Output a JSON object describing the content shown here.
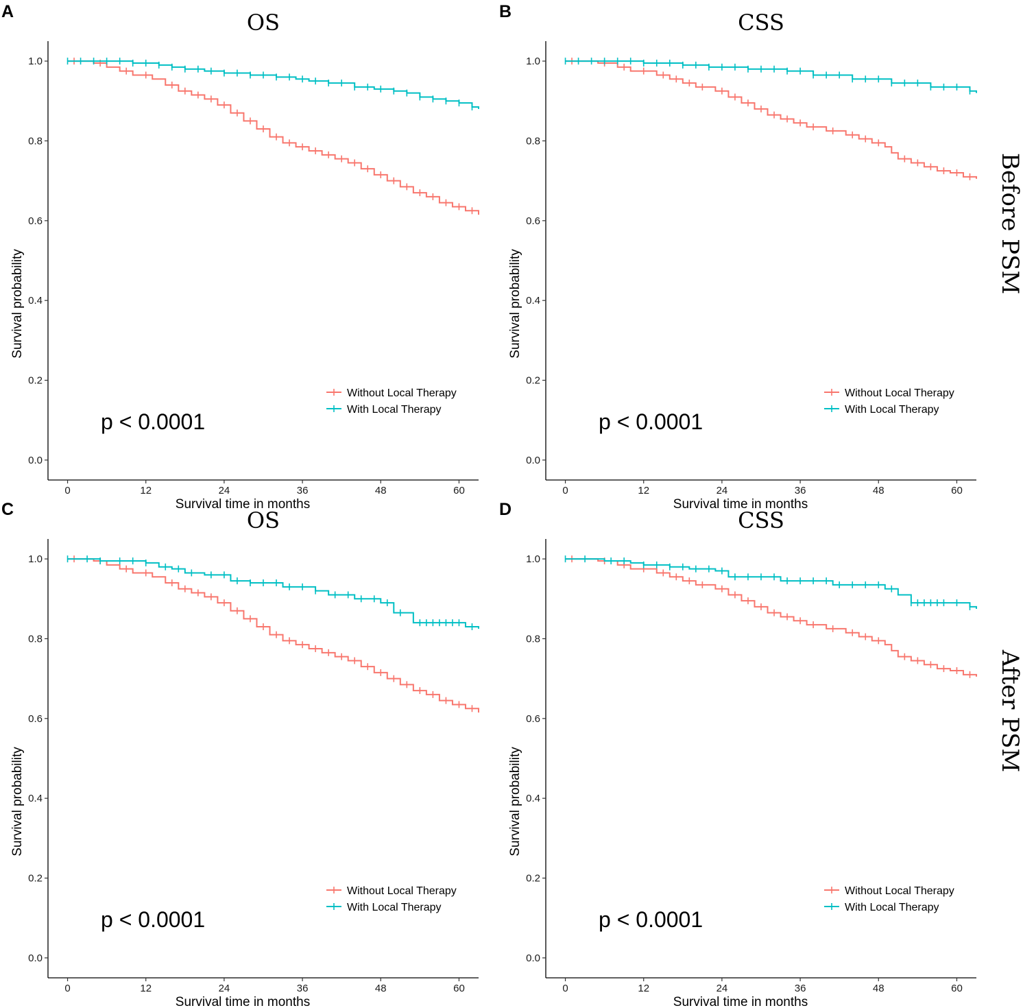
{
  "figure": {
    "row_labels": [
      "Before PSM",
      "After PSM"
    ]
  },
  "chart_data": [
    {
      "panel": "A",
      "type": "line",
      "title": "OS",
      "xlabel": "Survival time in months",
      "ylabel": "Survival probability",
      "xlim": [
        -3,
        63
      ],
      "ylim": [
        -0.05,
        1.05
      ],
      "x_ticks": [
        0,
        12,
        24,
        36,
        48,
        60
      ],
      "y_ticks": [
        0.0,
        0.2,
        0.4,
        0.6,
        0.8,
        1.0
      ],
      "y_tick_labels": [
        "0.0",
        "0.2",
        "0.4",
        "0.6",
        "0.8",
        "1.0"
      ],
      "annotation": "p < 0.0001",
      "legend_position": "bottom-right",
      "series": [
        {
          "name": "Without Local Therapy",
          "color": "#F8766D",
          "x": [
            0,
            4,
            6,
            8,
            10,
            13,
            15,
            17,
            19,
            21,
            23,
            25,
            27,
            29,
            31,
            33,
            35,
            37,
            39,
            41,
            43,
            45,
            47,
            49,
            51,
            53,
            55,
            57,
            59,
            61,
            63
          ],
          "y": [
            1.0,
            0.995,
            0.985,
            0.975,
            0.965,
            0.955,
            0.94,
            0.925,
            0.915,
            0.905,
            0.89,
            0.87,
            0.85,
            0.83,
            0.81,
            0.795,
            0.785,
            0.775,
            0.765,
            0.755,
            0.745,
            0.73,
            0.715,
            0.7,
            0.685,
            0.67,
            0.66,
            0.645,
            0.635,
            0.625,
            0.615
          ],
          "censor_x": [
            1,
            5,
            9,
            12,
            16,
            18,
            20,
            22,
            24,
            26,
            28,
            30,
            32,
            34,
            36,
            38,
            40,
            42,
            44,
            46,
            48,
            50,
            52,
            54,
            56,
            58,
            60,
            62
          ]
        },
        {
          "name": "With Local Therapy",
          "color": "#00BFC4",
          "x": [
            0,
            10,
            14,
            16,
            18,
            21,
            24,
            28,
            32,
            35,
            37,
            40,
            44,
            47,
            50,
            52,
            54,
            56,
            58,
            60,
            62,
            63
          ],
          "y": [
            1.0,
            0.995,
            0.99,
            0.985,
            0.98,
            0.975,
            0.97,
            0.965,
            0.96,
            0.955,
            0.95,
            0.945,
            0.935,
            0.93,
            0.925,
            0.92,
            0.91,
            0.905,
            0.9,
            0.895,
            0.885,
            0.88
          ],
          "censor_x": [
            0,
            2,
            4,
            6,
            8,
            10,
            12,
            14,
            16,
            18,
            20,
            22,
            24,
            26,
            28,
            30,
            32,
            34,
            36,
            38,
            40,
            42,
            44,
            46,
            48,
            50,
            52,
            54,
            56,
            58,
            60,
            62
          ]
        }
      ]
    },
    {
      "panel": "B",
      "type": "line",
      "title": "CSS",
      "xlabel": "Survival time in months",
      "ylabel": "Survival probability",
      "xlim": [
        -3,
        63
      ],
      "ylim": [
        -0.05,
        1.05
      ],
      "x_ticks": [
        0,
        12,
        24,
        36,
        48,
        60
      ],
      "y_ticks": [
        0.0,
        0.2,
        0.4,
        0.6,
        0.8,
        1.0
      ],
      "y_tick_labels": [
        "0.0",
        "0.2",
        "0.4",
        "0.6",
        "0.8",
        "1.0"
      ],
      "annotation": "p < 0.0001",
      "legend_position": "bottom-right",
      "series": [
        {
          "name": "Without Local Therapy",
          "color": "#F8766D",
          "x": [
            0,
            5,
            8,
            10,
            14,
            16,
            18,
            20,
            23,
            25,
            27,
            29,
            31,
            33,
            35,
            37,
            40,
            43,
            45,
            47,
            49,
            50,
            51,
            53,
            55,
            57,
            59,
            61,
            63
          ],
          "y": [
            1.0,
            0.995,
            0.985,
            0.975,
            0.965,
            0.955,
            0.945,
            0.935,
            0.925,
            0.91,
            0.895,
            0.88,
            0.865,
            0.855,
            0.845,
            0.835,
            0.825,
            0.815,
            0.805,
            0.795,
            0.785,
            0.77,
            0.755,
            0.745,
            0.735,
            0.725,
            0.72,
            0.71,
            0.705
          ],
          "censor_x": [
            1,
            6,
            9,
            12,
            15,
            17,
            19,
            21,
            24,
            26,
            28,
            30,
            32,
            34,
            36,
            38,
            41,
            44,
            46,
            48,
            52,
            54,
            56,
            58,
            60,
            62
          ]
        },
        {
          "name": "With Local Therapy",
          "color": "#00BFC4",
          "x": [
            0,
            12,
            18,
            22,
            28,
            34,
            38,
            44,
            50,
            56,
            62,
            63
          ],
          "y": [
            1.0,
            0.995,
            0.99,
            0.985,
            0.98,
            0.975,
            0.965,
            0.955,
            0.945,
            0.935,
            0.925,
            0.92
          ],
          "censor_x": [
            0,
            2,
            4,
            6,
            8,
            10,
            12,
            14,
            16,
            18,
            20,
            22,
            24,
            26,
            28,
            30,
            32,
            34,
            36,
            38,
            40,
            42,
            44,
            46,
            48,
            50,
            52,
            54,
            56,
            58,
            60,
            62
          ]
        }
      ]
    },
    {
      "panel": "C",
      "type": "line",
      "title": "OS",
      "xlabel": "Survival time in months",
      "ylabel": "Survival probability",
      "xlim": [
        -3,
        63
      ],
      "ylim": [
        -0.05,
        1.05
      ],
      "x_ticks": [
        0,
        12,
        24,
        36,
        48,
        60
      ],
      "y_ticks": [
        0.0,
        0.2,
        0.4,
        0.6,
        0.8,
        1.0
      ],
      "y_tick_labels": [
        "0.0",
        "0.2",
        "0.4",
        "0.6",
        "0.8",
        "1.0"
      ],
      "annotation": "p < 0.0001",
      "legend_position": "bottom-right",
      "series": [
        {
          "name": "Without Local Therapy",
          "color": "#F8766D",
          "x": [
            0,
            4,
            6,
            8,
            10,
            13,
            15,
            17,
            19,
            21,
            23,
            25,
            27,
            29,
            31,
            33,
            35,
            37,
            39,
            41,
            43,
            45,
            47,
            49,
            51,
            53,
            55,
            57,
            59,
            61,
            63
          ],
          "y": [
            1.0,
            0.995,
            0.985,
            0.975,
            0.965,
            0.955,
            0.94,
            0.925,
            0.915,
            0.905,
            0.89,
            0.87,
            0.85,
            0.83,
            0.81,
            0.795,
            0.785,
            0.775,
            0.765,
            0.755,
            0.745,
            0.73,
            0.715,
            0.7,
            0.685,
            0.67,
            0.66,
            0.645,
            0.635,
            0.625,
            0.615
          ],
          "censor_x": [
            1,
            5,
            9,
            12,
            16,
            18,
            20,
            22,
            24,
            26,
            28,
            30,
            32,
            34,
            36,
            38,
            40,
            42,
            44,
            46,
            48,
            50,
            52,
            54,
            56,
            58,
            60,
            62
          ]
        },
        {
          "name": "With Local Therapy",
          "color": "#00BFC4",
          "x": [
            0,
            5,
            12,
            14,
            16,
            18,
            21,
            25,
            28,
            33,
            38,
            40,
            44,
            48,
            50,
            53,
            61,
            63
          ],
          "y": [
            1.0,
            0.995,
            0.99,
            0.98,
            0.975,
            0.965,
            0.96,
            0.945,
            0.94,
            0.93,
            0.92,
            0.91,
            0.9,
            0.89,
            0.865,
            0.84,
            0.83,
            0.825
          ],
          "censor_x": [
            0,
            3,
            5,
            8,
            10,
            12,
            15,
            17,
            19,
            22,
            24,
            26,
            28,
            30,
            32,
            34,
            36,
            38,
            41,
            43,
            45,
            47,
            49,
            51,
            54,
            55,
            56,
            57,
            58,
            59,
            60,
            62
          ]
        }
      ]
    },
    {
      "panel": "D",
      "type": "line",
      "title": "CSS",
      "xlabel": "Survival time in months",
      "ylabel": "Survival probability",
      "xlim": [
        -3,
        63
      ],
      "ylim": [
        -0.05,
        1.05
      ],
      "x_ticks": [
        0,
        12,
        24,
        36,
        48,
        60
      ],
      "y_ticks": [
        0.0,
        0.2,
        0.4,
        0.6,
        0.8,
        1.0
      ],
      "y_tick_labels": [
        "0.0",
        "0.2",
        "0.4",
        "0.6",
        "0.8",
        "1.0"
      ],
      "annotation": "p < 0.0001",
      "legend_position": "bottom-right",
      "series": [
        {
          "name": "Without Local Therapy",
          "color": "#F8766D",
          "x": [
            0,
            5,
            8,
            10,
            14,
            16,
            18,
            20,
            23,
            25,
            27,
            29,
            31,
            33,
            35,
            37,
            40,
            43,
            45,
            47,
            49,
            50,
            51,
            53,
            55,
            57,
            59,
            61,
            63
          ],
          "y": [
            1.0,
            0.995,
            0.985,
            0.975,
            0.965,
            0.955,
            0.945,
            0.935,
            0.925,
            0.91,
            0.895,
            0.88,
            0.865,
            0.855,
            0.845,
            0.835,
            0.825,
            0.815,
            0.805,
            0.795,
            0.785,
            0.77,
            0.755,
            0.745,
            0.735,
            0.725,
            0.72,
            0.71,
            0.705
          ],
          "censor_x": [
            1,
            6,
            9,
            12,
            15,
            17,
            19,
            21,
            24,
            26,
            28,
            30,
            32,
            34,
            36,
            38,
            41,
            44,
            46,
            48,
            52,
            54,
            56,
            58,
            60,
            62
          ]
        },
        {
          "name": "With Local Therapy",
          "color": "#00BFC4",
          "x": [
            0,
            6,
            10,
            12,
            16,
            19,
            23,
            25,
            33,
            41,
            49,
            51,
            53,
            62,
            63
          ],
          "y": [
            1.0,
            0.995,
            0.99,
            0.985,
            0.98,
            0.975,
            0.97,
            0.955,
            0.945,
            0.935,
            0.925,
            0.91,
            0.89,
            0.88,
            0.875
          ],
          "censor_x": [
            0,
            3,
            7,
            9,
            12,
            14,
            16,
            18,
            20,
            22,
            24,
            26,
            28,
            30,
            32,
            34,
            36,
            38,
            40,
            42,
            44,
            46,
            48,
            50,
            53,
            54,
            55,
            56,
            57,
            58,
            60,
            62
          ]
        }
      ]
    }
  ]
}
